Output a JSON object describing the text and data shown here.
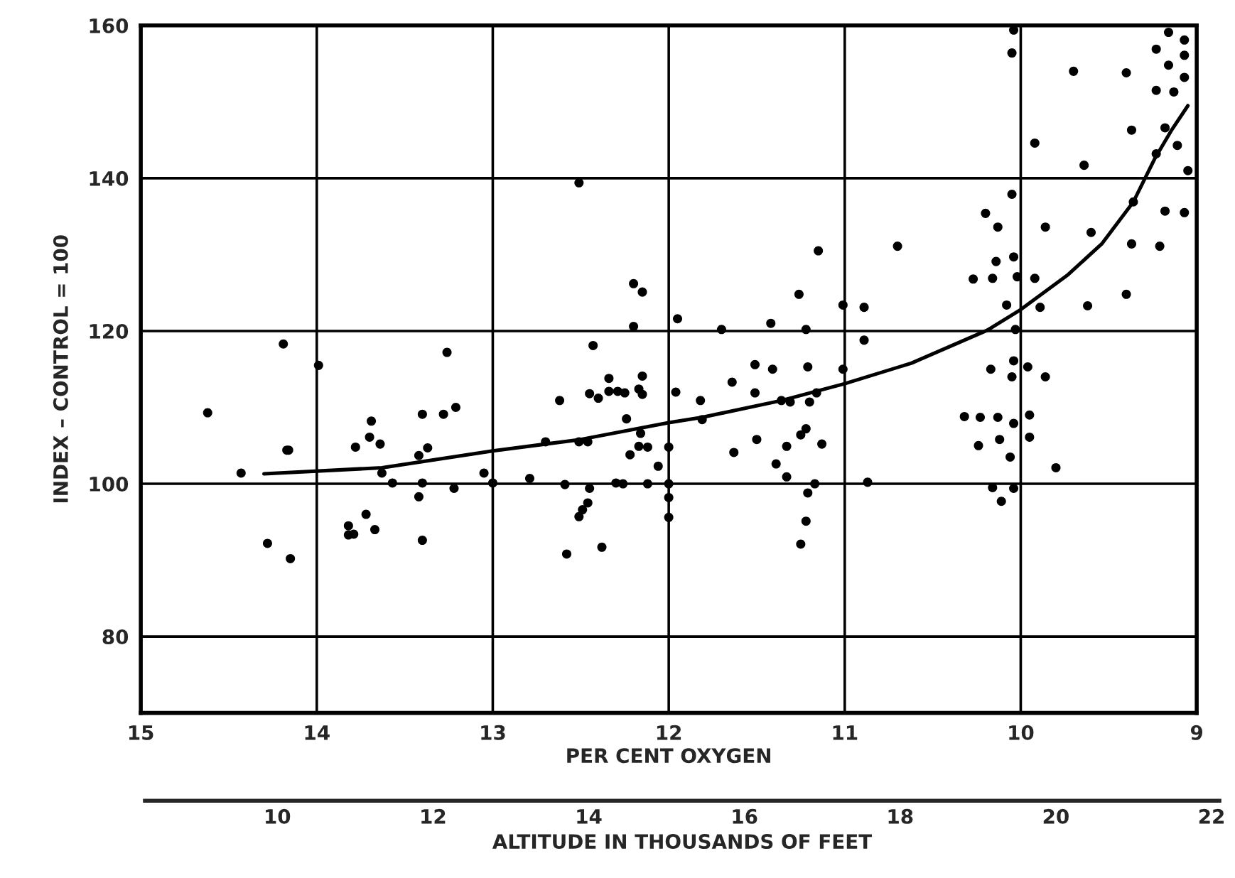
{
  "chart_data": {
    "type": "scatter",
    "xlabel": "PER CENT OXYGEN",
    "ylabel": "INDEX – CONTROL = 100",
    "x2label": "ALTITUDE IN THOUSANDS OF FEET",
    "xlim": [
      15,
      9
    ],
    "xticks": [
      15,
      14,
      13,
      12,
      11,
      10,
      9
    ],
    "ylim": [
      70,
      160
    ],
    "yticks": [
      80,
      100,
      120,
      140,
      160
    ],
    "x2lim": [
      8.3,
      22.1
    ],
    "x2ticks": [
      10,
      12,
      14,
      16,
      18,
      20,
      22
    ],
    "grid": true,
    "series": [
      {
        "color": "#000000",
        "marker": "circle",
        "x": [
          14.62,
          14.43,
          14.28,
          14.15,
          14.19,
          14.17,
          14.16,
          13.99,
          13.82,
          13.79,
          13.82,
          13.72,
          13.67,
          13.78,
          13.7,
          13.69,
          13.64,
          13.63,
          13.57,
          13.42,
          13.4,
          13.37,
          13.4,
          13.42,
          13.4,
          13.28,
          13.21,
          13.26,
          13.22,
          13.05,
          13.0,
          12.79,
          12.7,
          12.62,
          12.51,
          12.59,
          12.58,
          12.51,
          12.46,
          12.51,
          12.49,
          12.46,
          12.45,
          12.38,
          12.43,
          12.45,
          12.4,
          12.34,
          12.34,
          12.29,
          12.25,
          12.2,
          12.15,
          12.2,
          12.15,
          12.17,
          12.15,
          12.24,
          12.16,
          12.17,
          12.12,
          12.22,
          12.3,
          12.26,
          12.12,
          12.06,
          12.0,
          12.0,
          12.0,
          12.0,
          11.95,
          11.96,
          11.81,
          11.82,
          11.7,
          11.64,
          11.63,
          11.51,
          11.51,
          11.5,
          11.42,
          11.41,
          11.39,
          11.33,
          11.33,
          11.36,
          11.31,
          11.26,
          11.22,
          11.21,
          11.2,
          11.16,
          11.22,
          11.25,
          11.13,
          11.21,
          11.17,
          11.22,
          11.25,
          11.15,
          11.01,
          11.01,
          10.89,
          10.89,
          10.87,
          10.7,
          10.32,
          10.23,
          10.13,
          10.24,
          10.12,
          10.06,
          10.04,
          9.95,
          9.95,
          9.8,
          10.16,
          10.04,
          10.11,
          10.17,
          10.05,
          10.04,
          9.96,
          9.86,
          10.03,
          10.08,
          9.89,
          10.27,
          10.16,
          10.02,
          9.92,
          10.14,
          10.04,
          10.2,
          10.13,
          10.05,
          9.86,
          10.04,
          10.05,
          9.92,
          9.7,
          9.64,
          9.62,
          9.6,
          9.4,
          9.37,
          9.4,
          9.37,
          9.36,
          9.23,
          9.16,
          9.16,
          9.23,
          9.13,
          9.07,
          9.07,
          9.07,
          9.18,
          9.23,
          9.11,
          9.18,
          9.07,
          9.21,
          9.05
        ],
        "values": [
          109.3,
          101.4,
          92.2,
          90.2,
          118.3,
          104.4,
          104.4,
          115.5,
          94.5,
          93.4,
          93.3,
          96,
          94,
          104.8,
          106.1,
          108.2,
          105.2,
          101.4,
          100.1,
          103.7,
          109.1,
          104.7,
          100.1,
          98.3,
          92.6,
          109.1,
          110,
          117.2,
          99.4,
          101.4,
          100.1,
          100.7,
          105.5,
          110.9,
          139.4,
          99.9,
          90.8,
          105.5,
          105.5,
          95.7,
          96.6,
          97.5,
          99.4,
          91.7,
          118.1,
          111.8,
          111.2,
          113.8,
          112.1,
          112.1,
          111.9,
          126.2,
          125.1,
          120.6,
          114.1,
          112.4,
          111.7,
          108.5,
          106.6,
          104.9,
          104.8,
          103.8,
          100.1,
          100,
          100,
          102.3,
          104.8,
          100,
          98.2,
          95.6,
          121.6,
          112,
          108.4,
          110.9,
          120.2,
          113.3,
          104.1,
          115.6,
          111.9,
          105.8,
          121,
          115,
          102.6,
          104.9,
          100.9,
          110.9,
          110.7,
          124.8,
          120.2,
          115.3,
          110.7,
          111.9,
          107.2,
          106.4,
          105.2,
          98.8,
          100,
          95.1,
          92.1,
          130.5,
          123.4,
          115,
          123.1,
          118.8,
          100.2,
          131.1,
          108.8,
          108.7,
          108.7,
          105,
          105.8,
          103.5,
          107.9,
          109,
          106.1,
          102.1,
          99.5,
          99.4,
          97.7,
          115,
          114,
          116.1,
          115.3,
          114,
          120.2,
          123.4,
          123.1,
          126.8,
          126.9,
          127.1,
          126.9,
          129.1,
          129.7,
          135.4,
          133.6,
          137.9,
          133.6,
          159.4,
          156.4,
          144.6,
          154,
          141.7,
          123.3,
          132.9,
          153.8,
          146.3,
          124.8,
          131.4,
          136.9,
          156.9,
          159.1,
          154.8,
          151.5,
          151.3,
          158.1,
          156.1,
          153.2,
          146.6,
          143.2,
          144.3,
          135.7,
          135.5,
          131.1,
          141
        ]
      },
      {
        "type": "line",
        "color": "#000000",
        "x": [
          14.3,
          13.63,
          13.0,
          12.5,
          12.0,
          11.81,
          11.36,
          11.0,
          10.62,
          10.19,
          10.0,
          9.73,
          9.54,
          9.36,
          9.24,
          9.14,
          9.05
        ],
        "values": [
          101.3,
          102.1,
          104.3,
          105.8,
          108,
          108.7,
          110.9,
          113.1,
          115.8,
          120.1,
          122.8,
          127.4,
          131.4,
          136.9,
          142.5,
          146.4,
          149.5
        ]
      }
    ]
  }
}
